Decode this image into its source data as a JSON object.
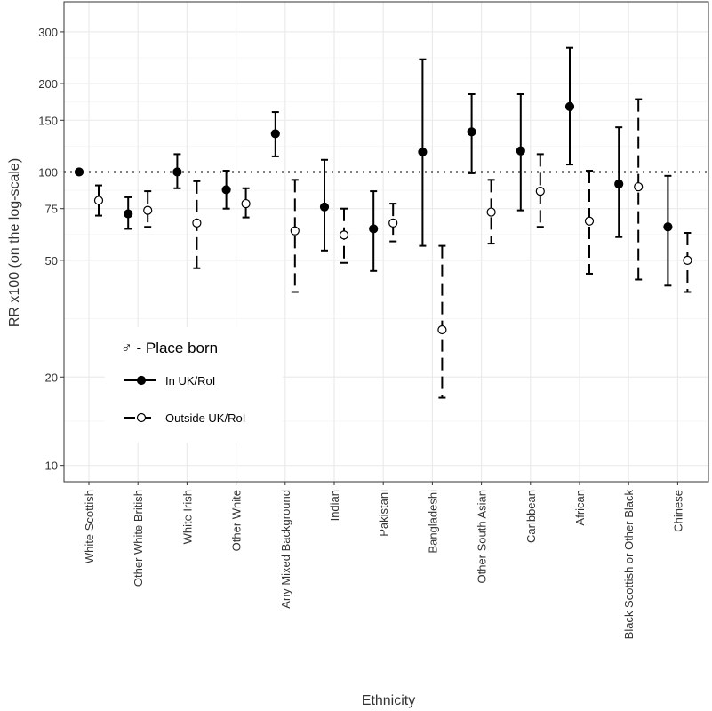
{
  "chart_data": {
    "type": "scatter",
    "subtype": "point-with-error-bars",
    "xlabel": "Ethnicity",
    "ylabel": "RR x100 (on the log-scale)",
    "y_scale": "log",
    "ylim": [
      8.8,
      380
    ],
    "y_ticks": [
      10,
      20,
      50,
      75,
      100,
      150,
      200,
      300
    ],
    "y_tick_labels": [
      "10",
      "20",
      "50",
      "75",
      "100",
      "150",
      "200",
      "300"
    ],
    "reference_line": 100,
    "grid": true,
    "legend_position": "left",
    "categories": [
      "White Scottish",
      "Other White British",
      "White Irish",
      "Other White",
      "Any Mixed Background",
      "Indian",
      "Pakistani",
      "Bangladeshi",
      "Other South Asian",
      "Caribbean",
      "African",
      "Black Scottish or Other Black",
      "Chinese"
    ],
    "legend": {
      "title": "♂ -  Place born",
      "entries": [
        "In UK/RoI",
        "Outside UK/RoI"
      ]
    },
    "series": [
      {
        "name": "In UK/RoI",
        "marker": "filled-circle",
        "line_style": "solid",
        "values": [
          100,
          72,
          100,
          87,
          135,
          76,
          64,
          117,
          137,
          118,
          167,
          91,
          65
        ],
        "lower": [
          null,
          64,
          88,
          75,
          113,
          54,
          46,
          56,
          99,
          74,
          106,
          60,
          41
        ],
        "upper": [
          null,
          82,
          115,
          101,
          160,
          110,
          86,
          242,
          184,
          184,
          265,
          142,
          97
        ]
      },
      {
        "name": "Outside UK/RoI",
        "marker": "open-circle",
        "line_style": "dashed",
        "values": [
          80,
          74,
          67,
          78,
          63,
          61,
          67,
          29,
          73,
          86,
          68,
          89,
          50
        ],
        "lower": [
          71,
          65,
          47,
          70,
          39,
          49,
          58,
          17,
          57,
          65,
          45,
          43,
          39
        ],
        "upper": [
          90,
          86,
          93,
          88,
          94,
          75,
          78,
          56,
          94,
          115,
          101,
          177,
          62
        ]
      }
    ],
    "colors": {
      "point": "#000000",
      "open_fill": "#ffffff",
      "grid": "#ebebeb",
      "panel_border": "#333333"
    }
  }
}
